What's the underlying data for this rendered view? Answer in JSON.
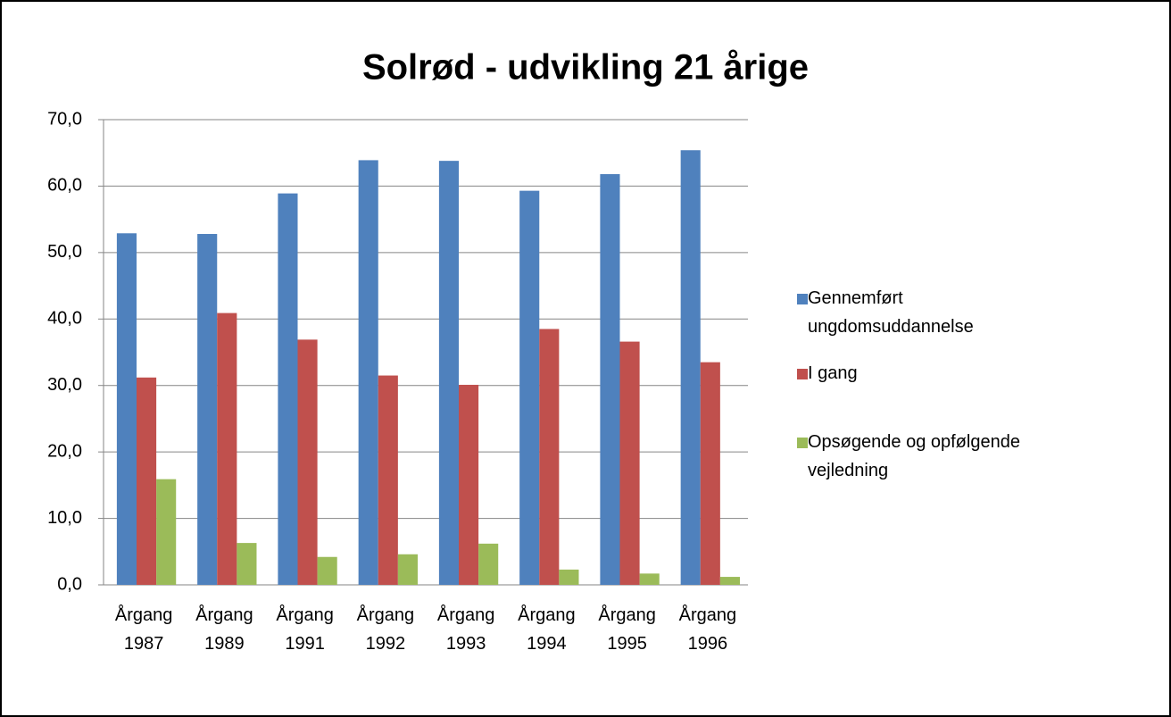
{
  "chart_data": {
    "type": "bar",
    "title": "Solrød - udvikling 21 årige",
    "categories": [
      "Årgang 1987",
      "Årgang 1989",
      "Årgang 1991",
      "Årgang 1992",
      "Årgang 1993",
      "Årgang 1994",
      "Årgang 1995",
      "Årgang 1996"
    ],
    "series": [
      {
        "name": "Gennemført ungdomsuddannelse",
        "color": "#4f81bd",
        "values": [
          52.9,
          52.8,
          58.9,
          63.9,
          63.8,
          59.3,
          61.8,
          65.4
        ]
      },
      {
        "name": "I gang",
        "color": "#c0504d",
        "values": [
          31.2,
          40.9,
          36.9,
          31.5,
          30.1,
          38.5,
          36.6,
          33.5
        ]
      },
      {
        "name": "Opsøgende og opfølgende vejledning",
        "color": "#9bbb59",
        "values": [
          15.9,
          6.3,
          4.2,
          4.6,
          6.2,
          2.3,
          1.7,
          1.2
        ]
      }
    ],
    "ylim": [
      0,
      70
    ],
    "yticks": [
      {
        "value": 0,
        "label": "0,0"
      },
      {
        "value": 10,
        "label": "10,0"
      },
      {
        "value": 20,
        "label": "20,0"
      },
      {
        "value": 30,
        "label": "30,0"
      },
      {
        "value": 40,
        "label": "40,0"
      },
      {
        "value": 50,
        "label": "50,0"
      },
      {
        "value": 60,
        "label": "60,0"
      },
      {
        "value": 70,
        "label": "70,0"
      }
    ],
    "grid": true,
    "legend": "right"
  }
}
